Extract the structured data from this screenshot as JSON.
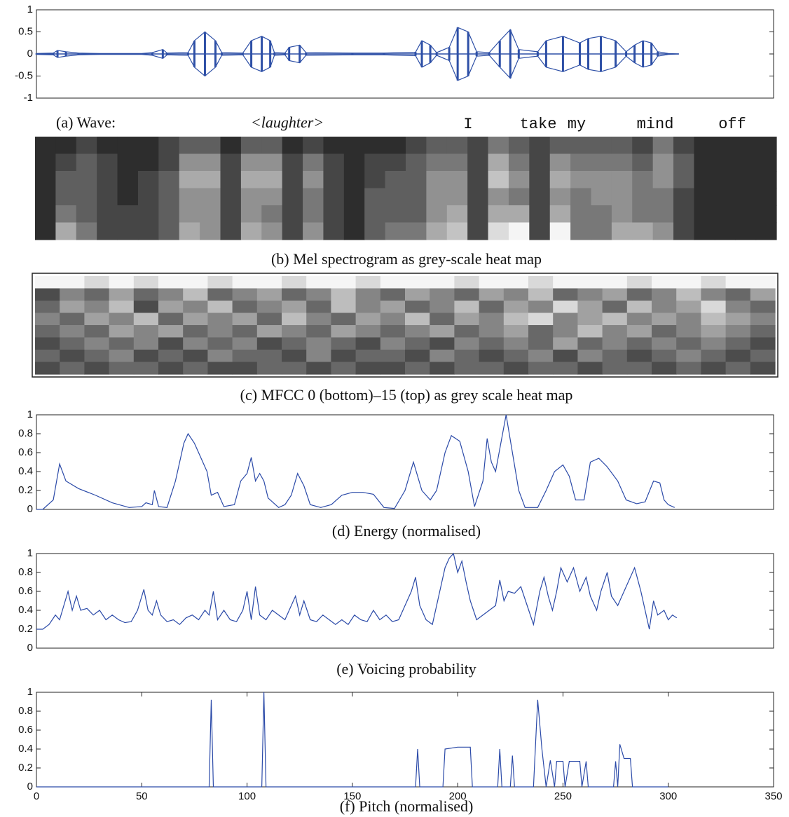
{
  "chart_data": [
    {
      "type": "area",
      "title": "(a) Wave:",
      "color": "#2d4fa6",
      "annotations": [
        "<laughter>",
        "I",
        "take",
        "my",
        "mind",
        "off"
      ],
      "xlim": [
        0,
        350
      ],
      "ylim": [
        -1,
        1
      ],
      "yticks": [
        -1,
        -0.5,
        0,
        0.5,
        1
      ],
      "x": [
        0,
        8,
        10,
        14,
        20,
        30,
        50,
        55,
        60,
        62,
        72,
        75,
        80,
        85,
        88,
        98,
        102,
        107,
        111,
        113,
        118,
        120,
        125,
        128,
        150,
        165,
        180,
        183,
        187,
        190,
        196,
        200,
        205,
        209,
        215,
        220,
        225,
        229,
        238,
        242,
        250,
        258,
        262,
        268,
        275,
        280,
        284,
        288,
        292,
        295,
        300,
        305
      ],
      "values": [
        0.01,
        0.02,
        0.08,
        0.05,
        0.02,
        0.01,
        0.01,
        0.03,
        0.1,
        0.02,
        0.03,
        0.3,
        0.5,
        0.3,
        0.03,
        0.02,
        0.3,
        0.4,
        0.3,
        0.03,
        0.02,
        0.15,
        0.2,
        0.03,
        0.02,
        0.02,
        0.04,
        0.3,
        0.2,
        0.03,
        0.15,
        0.6,
        0.5,
        0.05,
        0.03,
        0.3,
        0.55,
        0.1,
        0.05,
        0.3,
        0.4,
        0.25,
        0.35,
        0.4,
        0.3,
        0.05,
        0.2,
        0.3,
        0.25,
        0.05,
        0.01,
        0
      ]
    },
    {
      "type": "heatmap",
      "title": "(b) Mel spectrogram as grey-scale heat map",
      "frame": false,
      "z": [
        [
          1,
          1,
          2,
          1,
          1,
          1,
          2,
          3,
          3,
          1,
          3,
          3,
          1,
          2,
          1,
          1,
          1,
          1,
          2,
          3,
          3,
          2,
          4,
          3,
          2,
          3,
          3,
          3,
          3,
          2,
          4,
          2,
          1,
          1,
          1,
          1
        ],
        [
          1,
          2,
          3,
          2,
          1,
          1,
          2,
          5,
          5,
          2,
          5,
          5,
          2,
          4,
          2,
          1,
          2,
          2,
          3,
          4,
          4,
          2,
          6,
          4,
          2,
          5,
          4,
          4,
          4,
          3,
          5,
          3,
          1,
          1,
          1,
          1
        ],
        [
          1,
          3,
          3,
          2,
          1,
          2,
          3,
          6,
          6,
          2,
          6,
          6,
          2,
          5,
          2,
          1,
          2,
          3,
          3,
          5,
          5,
          2,
          7,
          5,
          2,
          6,
          5,
          5,
          5,
          4,
          5,
          3,
          1,
          1,
          1,
          1
        ],
        [
          1,
          3,
          3,
          2,
          1,
          2,
          3,
          5,
          5,
          2,
          5,
          5,
          2,
          4,
          2,
          1,
          3,
          3,
          3,
          5,
          5,
          2,
          5,
          4,
          2,
          5,
          4,
          5,
          5,
          4,
          4,
          2,
          1,
          1,
          1,
          1
        ],
        [
          1,
          4,
          3,
          2,
          2,
          2,
          3,
          5,
          5,
          2,
          5,
          4,
          2,
          4,
          2,
          1,
          3,
          3,
          3,
          5,
          6,
          2,
          6,
          6,
          2,
          6,
          4,
          4,
          5,
          4,
          4,
          2,
          1,
          1,
          1,
          1
        ],
        [
          1,
          6,
          4,
          2,
          2,
          2,
          3,
          6,
          5,
          2,
          6,
          5,
          2,
          5,
          2,
          1,
          3,
          4,
          4,
          6,
          7,
          2,
          8,
          9,
          2,
          9,
          4,
          4,
          6,
          6,
          5,
          2,
          1,
          1,
          1,
          1
        ]
      ]
    },
    {
      "type": "heatmap",
      "title": "(c) MFCC 0 (bottom)–15 (top) as grey scale heat map",
      "frame": true,
      "z": [
        [
          8,
          8,
          7,
          8,
          7,
          8,
          8,
          7,
          8,
          8,
          7,
          8,
          8,
          7,
          8,
          8,
          8,
          7,
          8,
          8,
          7,
          8,
          8,
          8,
          7,
          8,
          8,
          7,
          8,
          8
        ],
        [
          2,
          4,
          3,
          5,
          3,
          4,
          6,
          3,
          4,
          5,
          3,
          4,
          6,
          4,
          3,
          5,
          4,
          3,
          5,
          4,
          6,
          3,
          4,
          5,
          3,
          4,
          6,
          4,
          3,
          5
        ],
        [
          3,
          5,
          4,
          6,
          2,
          5,
          4,
          6,
          3,
          4,
          5,
          3,
          6,
          4,
          5,
          3,
          4,
          6,
          3,
          5,
          4,
          7,
          5,
          3,
          6,
          4,
          5,
          7,
          4,
          3
        ],
        [
          4,
          3,
          5,
          4,
          6,
          3,
          5,
          4,
          5,
          3,
          6,
          4,
          3,
          5,
          4,
          6,
          3,
          5,
          4,
          6,
          7,
          4,
          5,
          6,
          4,
          5,
          4,
          6,
          5,
          4
        ],
        [
          3,
          4,
          3,
          5,
          4,
          5,
          3,
          4,
          3,
          5,
          4,
          3,
          5,
          4,
          3,
          4,
          5,
          3,
          4,
          5,
          3,
          4,
          6,
          4,
          5,
          3,
          4,
          5,
          4,
          3
        ],
        [
          2,
          3,
          4,
          3,
          4,
          2,
          4,
          3,
          4,
          2,
          3,
          4,
          3,
          2,
          4,
          3,
          2,
          4,
          3,
          4,
          3,
          5,
          3,
          4,
          3,
          4,
          3,
          4,
          3,
          2
        ],
        [
          3,
          2,
          3,
          4,
          2,
          3,
          2,
          4,
          3,
          3,
          2,
          4,
          2,
          3,
          3,
          2,
          4,
          3,
          2,
          3,
          4,
          2,
          4,
          3,
          2,
          3,
          4,
          3,
          2,
          3
        ],
        [
          2,
          3,
          2,
          3,
          3,
          2,
          3,
          2,
          2,
          3,
          3,
          2,
          3,
          2,
          2,
          3,
          2,
          3,
          3,
          2,
          3,
          3,
          2,
          3,
          3,
          2,
          3,
          2,
          3,
          2
        ]
      ]
    },
    {
      "type": "line",
      "title": "(d) Energy (normalised)",
      "color": "#2b4aa8",
      "xlim": [
        0,
        350
      ],
      "ylim": [
        0,
        1
      ],
      "yticks": [
        0,
        0.2,
        0.4,
        0.6,
        0.8,
        1
      ],
      "x": [
        0,
        3,
        8,
        11,
        14,
        20,
        28,
        36,
        44,
        50,
        52,
        55,
        56,
        58,
        62,
        66,
        70,
        72,
        75,
        78,
        81,
        83,
        86,
        89,
        94,
        97,
        100,
        102,
        104,
        106,
        108,
        110,
        112,
        115,
        118,
        121,
        124,
        127,
        130,
        135,
        140,
        145,
        150,
        155,
        160,
        165,
        170,
        175,
        179,
        183,
        187,
        190,
        194,
        197,
        201,
        205,
        208,
        212,
        214,
        216,
        218,
        223,
        226,
        229,
        232,
        238,
        242,
        246,
        250,
        253,
        256,
        260,
        263,
        267,
        271,
        276,
        280,
        285,
        289,
        293,
        296,
        298,
        300,
        303
      ],
      "values": [
        0,
        0,
        0.1,
        0.48,
        0.3,
        0.22,
        0.15,
        0.07,
        0.02,
        0.03,
        0.07,
        0.05,
        0.2,
        0.03,
        0.02,
        0.3,
        0.7,
        0.8,
        0.7,
        0.55,
        0.4,
        0.15,
        0.18,
        0.03,
        0.05,
        0.3,
        0.38,
        0.55,
        0.3,
        0.38,
        0.3,
        0.12,
        0.08,
        0.02,
        0.05,
        0.15,
        0.38,
        0.25,
        0.05,
        0.02,
        0.05,
        0.15,
        0.18,
        0.18,
        0.16,
        0.02,
        0.01,
        0.2,
        0.5,
        0.2,
        0.1,
        0.2,
        0.6,
        0.78,
        0.72,
        0.4,
        0.03,
        0.3,
        0.75,
        0.5,
        0.4,
        1,
        0.6,
        0.2,
        0.02,
        0.02,
        0.2,
        0.4,
        0.47,
        0.35,
        0.1,
        0.1,
        0.5,
        0.54,
        0.45,
        0.3,
        0.1,
        0.06,
        0.08,
        0.3,
        0.28,
        0.1,
        0.05,
        0.02
      ]
    },
    {
      "type": "line",
      "title": "(e) Voicing probability",
      "color": "#2b4aa8",
      "xlim": [
        0,
        350
      ],
      "ylim": [
        0,
        1
      ],
      "yticks": [
        0,
        0.2,
        0.4,
        0.6,
        0.8,
        1
      ],
      "x": [
        0,
        3,
        6,
        9,
        11,
        13,
        15,
        17,
        19,
        21,
        24,
        27,
        30,
        33,
        36,
        39,
        42,
        45,
        48,
        51,
        53,
        55,
        57,
        59,
        62,
        65,
        68,
        71,
        74,
        77,
        80,
        82,
        84,
        86,
        89,
        92,
        95,
        98,
        100,
        102,
        104,
        106,
        109,
        112,
        115,
        118,
        121,
        123,
        125,
        127,
        130,
        133,
        136,
        139,
        142,
        145,
        148,
        151,
        154,
        157,
        160,
        163,
        166,
        169,
        172,
        175,
        178,
        180,
        182,
        185,
        188,
        191,
        194,
        196,
        198,
        200,
        202,
        204,
        206,
        209,
        212,
        215,
        218,
        220,
        222,
        224,
        227,
        230,
        233,
        236,
        239,
        241,
        243,
        245,
        247,
        249,
        252,
        255,
        258,
        261,
        263,
        266,
        268,
        271,
        273,
        276,
        279,
        281,
        284,
        287,
        289,
        291,
        293,
        295,
        298,
        300,
        302,
        304
      ],
      "values": [
        0.2,
        0.2,
        0.25,
        0.35,
        0.3,
        0.45,
        0.6,
        0.4,
        0.55,
        0.4,
        0.42,
        0.35,
        0.4,
        0.3,
        0.35,
        0.3,
        0.27,
        0.28,
        0.4,
        0.62,
        0.4,
        0.35,
        0.5,
        0.35,
        0.28,
        0.3,
        0.25,
        0.32,
        0.35,
        0.3,
        0.4,
        0.35,
        0.6,
        0.3,
        0.4,
        0.3,
        0.28,
        0.4,
        0.6,
        0.3,
        0.65,
        0.35,
        0.3,
        0.4,
        0.35,
        0.3,
        0.45,
        0.55,
        0.35,
        0.5,
        0.3,
        0.28,
        0.35,
        0.3,
        0.25,
        0.3,
        0.25,
        0.35,
        0.3,
        0.28,
        0.4,
        0.3,
        0.35,
        0.28,
        0.3,
        0.45,
        0.6,
        0.75,
        0.45,
        0.3,
        0.25,
        0.55,
        0.85,
        0.95,
        1,
        0.8,
        0.92,
        0.7,
        0.5,
        0.3,
        0.35,
        0.4,
        0.45,
        0.72,
        0.5,
        0.6,
        0.58,
        0.65,
        0.45,
        0.25,
        0.6,
        0.75,
        0.55,
        0.4,
        0.6,
        0.85,
        0.7,
        0.85,
        0.6,
        0.75,
        0.55,
        0.4,
        0.6,
        0.8,
        0.55,
        0.45,
        0.6,
        0.7,
        0.85,
        0.6,
        0.4,
        0.2,
        0.5,
        0.35,
        0.4,
        0.3,
        0.35,
        0.32
      ]
    },
    {
      "type": "line",
      "title": "(f) Pitch (normalised)",
      "color": "#2b4aa8",
      "xlim": [
        0,
        350
      ],
      "ylim": [
        0,
        1
      ],
      "yticks": [
        0,
        0.2,
        0.4,
        0.6,
        0.8,
        1
      ],
      "xticks": [
        0,
        50,
        100,
        150,
        200,
        250,
        300,
        350
      ],
      "x": [
        0,
        82,
        83,
        84,
        107,
        108,
        109,
        180,
        181,
        182,
        193,
        194,
        200,
        206,
        207,
        219,
        220,
        221,
        225,
        226,
        227,
        236,
        238,
        240,
        242,
        244,
        246,
        247,
        250,
        251,
        253,
        258,
        259,
        261,
        262,
        274,
        275,
        276,
        277,
        279,
        282,
        283,
        300
      ],
      "values": [
        0,
        0,
        0.92,
        0,
        0,
        1,
        0,
        0,
        0.4,
        0,
        0,
        0.4,
        0.42,
        0.42,
        0,
        0,
        0.4,
        0,
        0,
        0.33,
        0,
        0,
        0.92,
        0.4,
        0,
        0.28,
        0,
        0.27,
        0.27,
        0,
        0.27,
        0.27,
        0,
        0.27,
        0,
        0,
        0.27,
        0,
        0.45,
        0.3,
        0.3,
        0,
        0
      ]
    }
  ]
}
